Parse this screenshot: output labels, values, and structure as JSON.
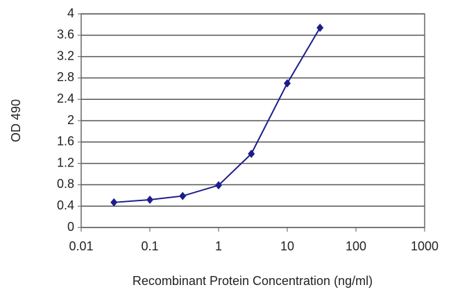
{
  "chart_data": {
    "type": "line",
    "x_label": "Recombinant Protein Concentration (ng/ml)",
    "y_label": "OD 490",
    "x": [
      0.03,
      0.1,
      0.3,
      1,
      3,
      10,
      30
    ],
    "series": [
      {
        "color": "#1c1c8c",
        "values": [
          0.47,
          0.52,
          0.59,
          0.79,
          1.38,
          2.7,
          3.74
        ]
      }
    ],
    "xscale": "log",
    "xlim": [
      0.01,
      1000
    ],
    "xticks": [
      0.01,
      0.1,
      1,
      10,
      100,
      1000
    ],
    "ylim": [
      0,
      4
    ],
    "yticks": [
      0,
      0.4,
      0.8,
      1.2,
      1.6,
      2,
      2.4,
      2.8,
      3.2,
      3.6,
      4
    ],
    "grid": true
  }
}
